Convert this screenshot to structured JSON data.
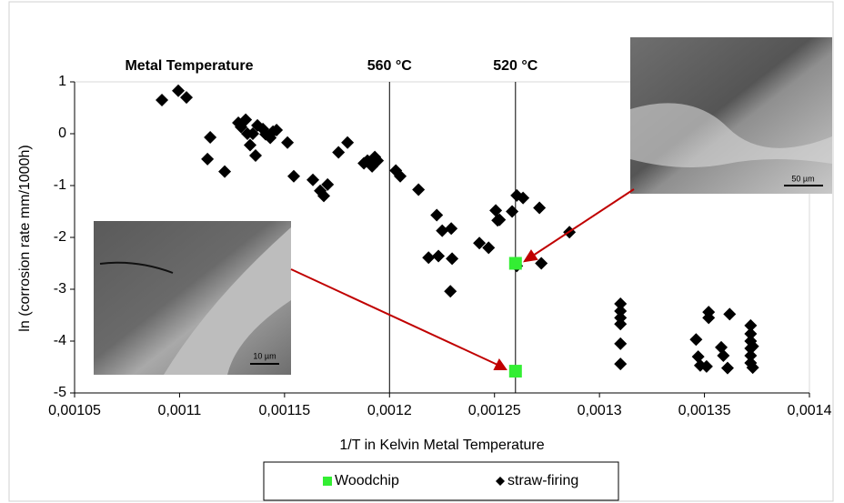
{
  "chart_data": {
    "type": "scatter",
    "xlabel": "1/T in Kelvin Metal Temperature",
    "ylabel": "ln (corrosion rate mm/1000h)",
    "top_label": "Metal Temperature",
    "reference_lines": [
      {
        "x": 0.0012,
        "label": "560 °C"
      },
      {
        "x": 0.00126,
        "label": "520 °C"
      }
    ],
    "xlim": [
      0.00105,
      0.0014
    ],
    "xticks": [
      {
        "value": 0.00105,
        "label": "0,00105"
      },
      {
        "value": 0.0011,
        "label": "0,0011"
      },
      {
        "value": 0.00115,
        "label": "0,00115"
      },
      {
        "value": 0.0012,
        "label": "0,0012"
      },
      {
        "value": 0.00125,
        "label": "0,00125"
      },
      {
        "value": 0.0013,
        "label": "0,0013"
      },
      {
        "value": 0.00135,
        "label": "0,00135"
      },
      {
        "value": 0.0014,
        "label": "0,0014"
      }
    ],
    "ylim": [
      -5,
      1
    ],
    "yticks": [
      -5,
      -4,
      -3,
      -2,
      -1,
      0,
      1
    ],
    "legend": "bottom",
    "image_scale_labels": [
      "50 µm",
      "10 µm"
    ],
    "series": [
      {
        "name": "Woodchip",
        "color": "#33ee33",
        "marker": "square",
        "x": [
          0.00126,
          0.00126
        ],
        "values": [
          -2.5,
          -4.58
        ]
      },
      {
        "name": "straw-firing",
        "color": "#000000",
        "marker": "diamond",
        "x": [
          0.0010916,
          0.0010994,
          0.0011033,
          0.0011146,
          0.0011215,
          0.0011133,
          0.001128,
          0.0011293,
          0.0011315,
          0.0011323,
          0.0011336,
          0.0011349,
          0.0011362,
          0.0011371,
          0.0011397,
          0.001141,
          0.0011432,
          0.0011445,
          0.0011462,
          0.0011514,
          0.0011544,
          0.0011635,
          0.001167,
          0.0011687,
          0.0011705,
          0.0011757,
          0.00118,
          0.0011878,
          0.0011895,
          0.0011917,
          0.001193,
          0.0011943,
          0.001203,
          0.0012051,
          0.0012138,
          0.0012225,
          0.0012251,
          0.0012186,
          0.0012233,
          0.0012298,
          0.0012294,
          0.001229,
          0.0012428,
          0.0012472,
          0.0012506,
          0.0012515,
          0.0012524,
          0.0012584,
          0.0012606,
          0.0012636,
          0.0012714,
          0.0012723,
          0.0012857,
          0.0012606,
          0.00131,
          0.00131,
          0.00131,
          0.00131,
          0.00131,
          0.00131,
          0.001346,
          0.001347,
          0.001348,
          0.001351,
          0.001352,
          0.001352,
          0.001358,
          0.001359,
          0.001361,
          0.001362,
          0.001372,
          0.001372,
          0.001372,
          0.001372,
          0.001372,
          0.001372,
          0.001373,
          0.001373
        ],
        "values": [
          0.65,
          0.83,
          0.7,
          -0.07,
          -0.73,
          -0.49,
          0.21,
          0.13,
          0.27,
          0.0,
          -0.22,
          0.0,
          -0.42,
          0.16,
          0.09,
          -0.01,
          -0.08,
          0.04,
          0.07,
          -0.17,
          -0.82,
          -0.89,
          -1.1,
          -1.2,
          -0.98,
          -0.36,
          -0.17,
          -0.57,
          -0.52,
          -0.63,
          -0.45,
          -0.52,
          -0.71,
          -0.82,
          -1.08,
          -1.57,
          -1.87,
          -2.39,
          -2.36,
          -2.41,
          -1.83,
          -3.04,
          -2.11,
          -2.2,
          -1.48,
          -1.67,
          -1.66,
          -1.5,
          -1.19,
          -1.24,
          -1.43,
          -2.5,
          -1.9,
          -2.55,
          -3.28,
          -3.42,
          -3.55,
          -3.67,
          -4.05,
          -4.44,
          -3.97,
          -4.3,
          -4.47,
          -4.49,
          -3.44,
          -3.55,
          -4.12,
          -4.28,
          -4.52,
          -3.48,
          -3.7,
          -3.86,
          -4.0,
          -4.14,
          -4.28,
          -4.42,
          -4.51,
          -4.1
        ]
      }
    ]
  }
}
